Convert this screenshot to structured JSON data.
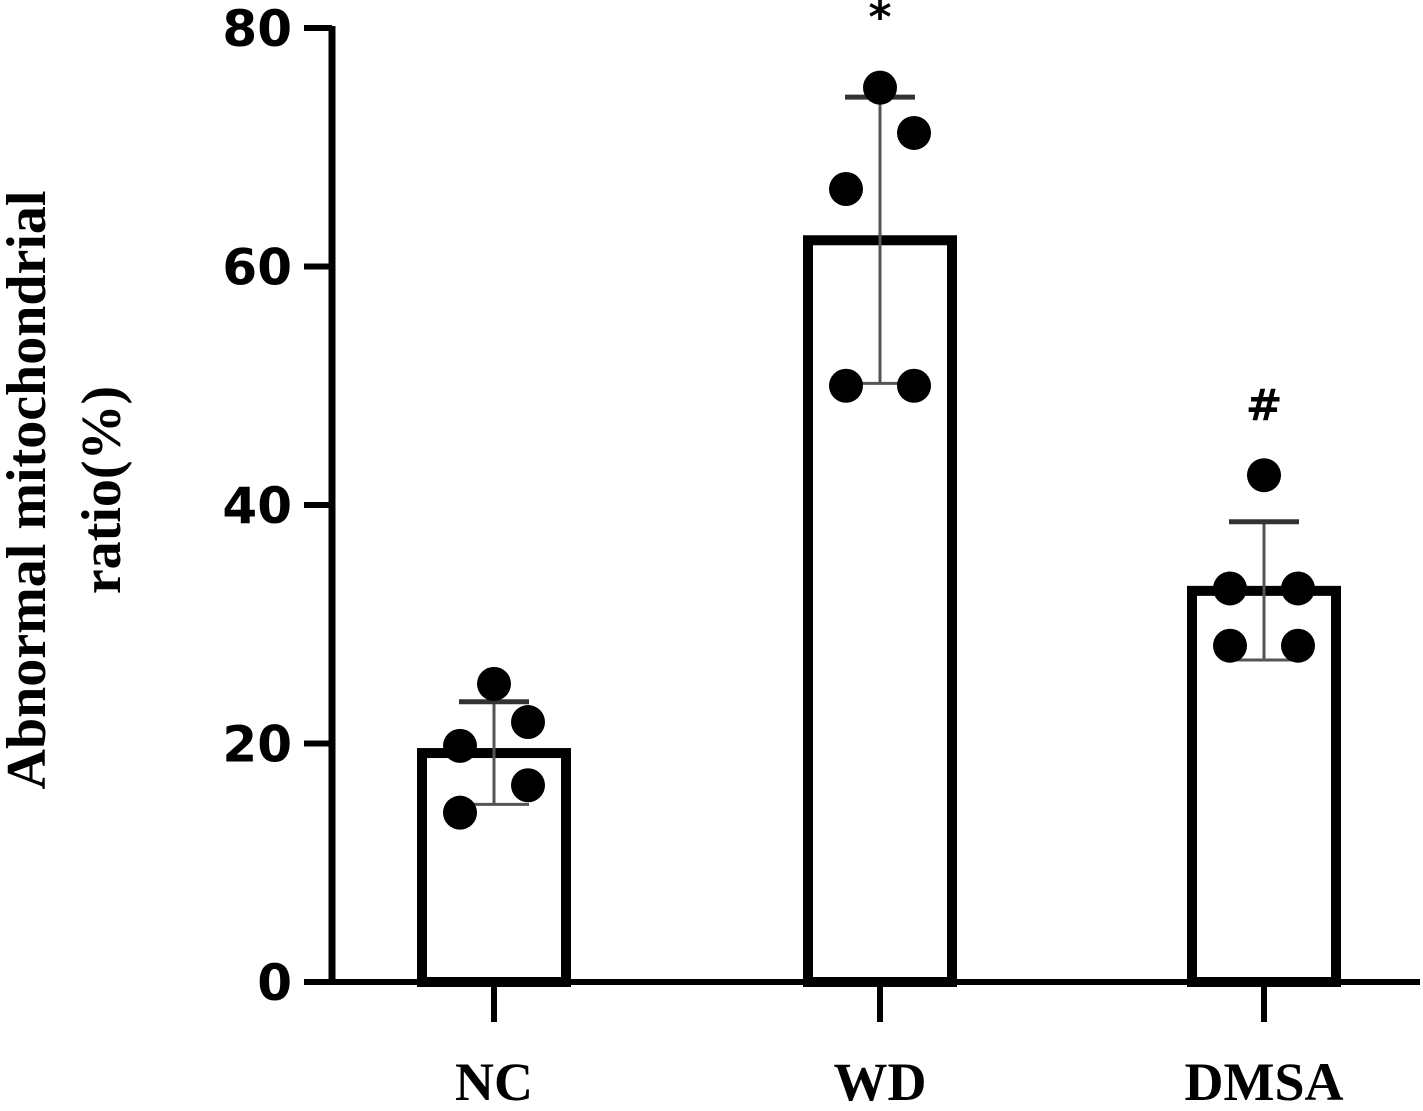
{
  "chart_data": {
    "type": "bar",
    "title": "",
    "xlabel": "",
    "ylabel_lines": [
      "Abnormal mitochondrial",
      "ratio(%)"
    ],
    "ylim": [
      0,
      80
    ],
    "yticks": [
      "0",
      "20",
      "40",
      "60",
      "80"
    ],
    "categories": [
      "NC",
      "WD",
      "DMSA"
    ],
    "values": [
      19.2,
      62.2,
      32.8
    ],
    "error": [
      4.3,
      12.0,
      5.8
    ],
    "points": [
      [
        25.0,
        21.8,
        19.8,
        16.5,
        14.2
      ],
      [
        75.0,
        71.2,
        66.5,
        50.0,
        50.0
      ],
      [
        42.5,
        33.0,
        33.0,
        28.2,
        28.2
      ]
    ],
    "annotations": [
      "",
      "*",
      "#"
    ],
    "grid": false,
    "legend": "none",
    "colors": {
      "bar_fill": "#ffffff",
      "bar_edge": "#000000",
      "points": "#000000",
      "error": "#555555"
    }
  }
}
